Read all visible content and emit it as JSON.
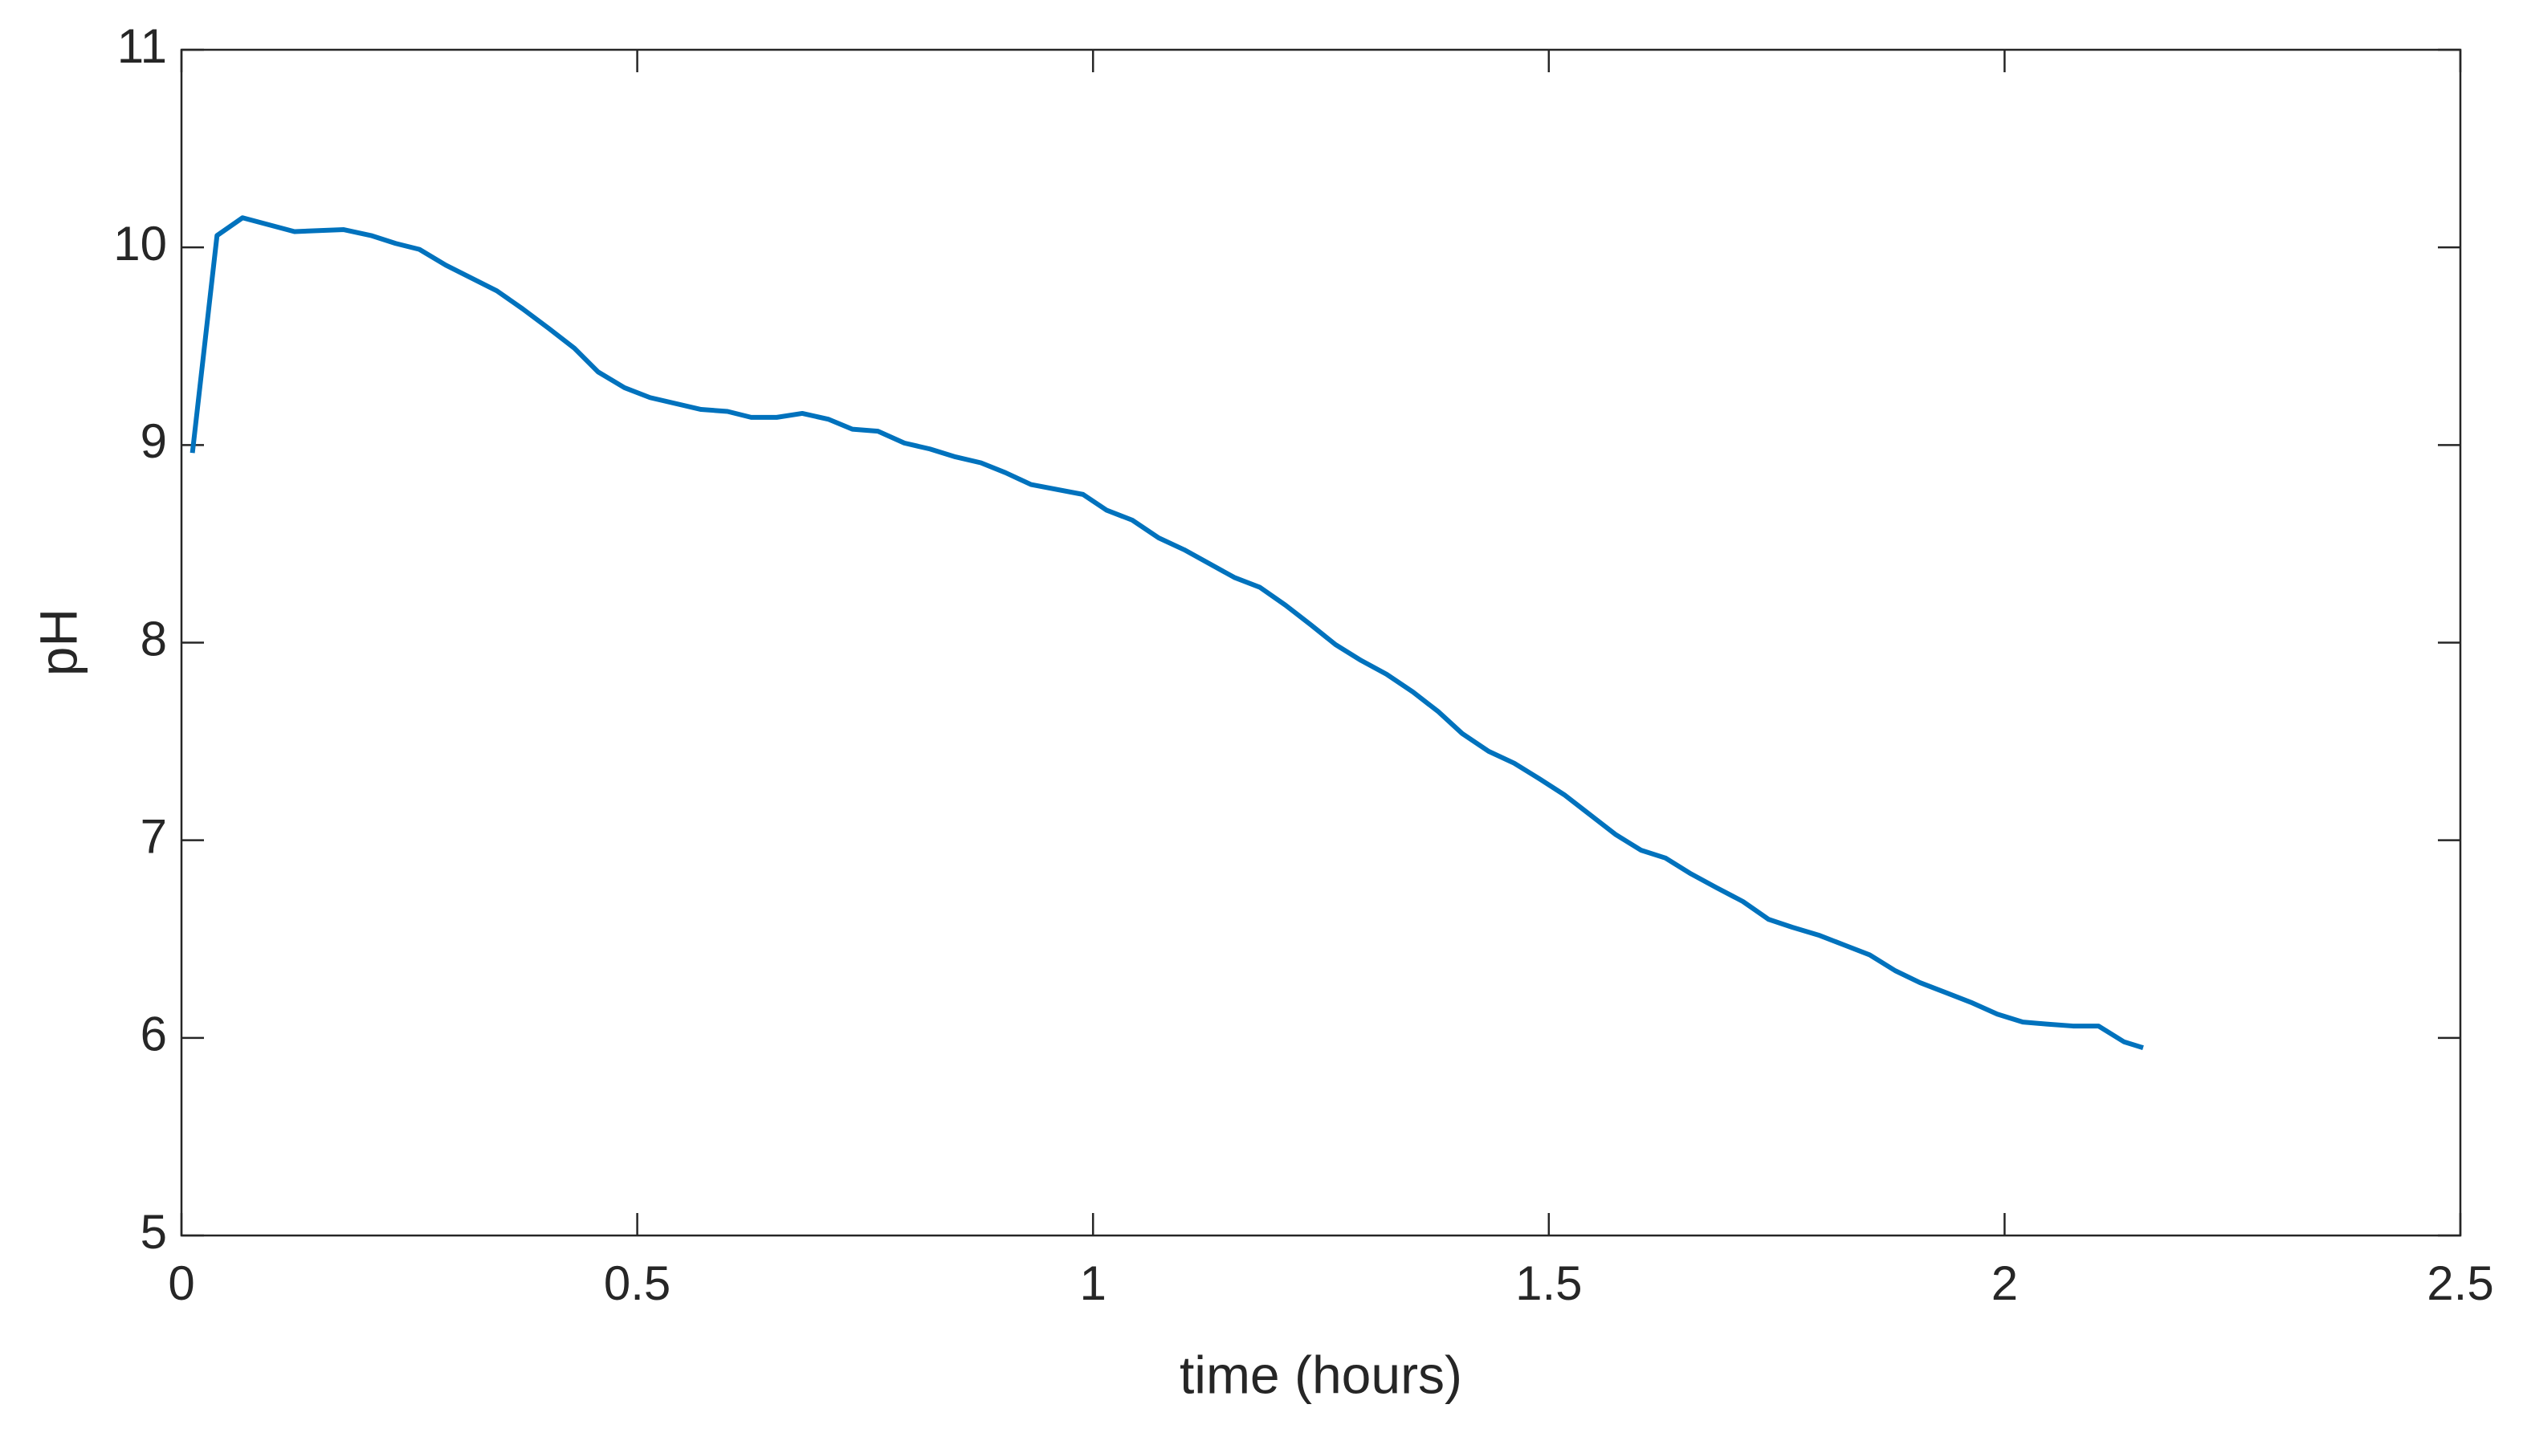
{
  "chart_data": {
    "type": "line",
    "xlabel": "time (hours)",
    "ylabel": "pH",
    "xlim": [
      0,
      2.5
    ],
    "xticks": [
      0,
      0.5,
      1,
      1.5,
      2,
      2.5
    ],
    "ylim": [
      5,
      11
    ],
    "yticks": [
      5,
      6,
      7,
      8,
      9,
      10,
      11
    ],
    "grid": false,
    "series": [
      {
        "color": "#0072BD",
        "x": [
          0.012,
          0.039,
          0.067,
          0.124,
          0.178,
          0.208,
          0.235,
          0.261,
          0.29,
          0.346,
          0.374,
          0.403,
          0.431,
          0.457,
          0.486,
          0.514,
          0.57,
          0.599,
          0.625,
          0.653,
          0.681,
          0.71,
          0.736,
          0.764,
          0.793,
          0.821,
          0.849,
          0.877,
          0.904,
          0.932,
          0.989,
          1.015,
          1.043,
          1.072,
          1.1,
          1.155,
          1.183,
          1.211,
          1.239,
          1.266,
          1.294,
          1.322,
          1.351,
          1.379,
          1.405,
          1.434,
          1.462,
          1.49,
          1.517,
          1.545,
          1.573,
          1.601,
          1.628,
          1.656,
          1.684,
          1.713,
          1.741,
          1.767,
          1.796,
          1.824,
          1.852,
          1.88,
          1.907,
          1.935,
          1.963,
          1.992,
          2.02,
          2.046,
          2.075,
          2.103,
          2.131,
          2.152
        ],
        "values": [
          8.96,
          10.06,
          10.15,
          10.08,
          10.09,
          10.06,
          10.02,
          9.99,
          9.91,
          9.78,
          9.69,
          9.59,
          9.49,
          9.37,
          9.29,
          9.24,
          9.18,
          9.17,
          9.14,
          9.14,
          9.16,
          9.13,
          9.08,
          9.07,
          9.01,
          8.98,
          8.94,
          8.91,
          8.86,
          8.8,
          8.75,
          8.67,
          8.62,
          8.53,
          8.47,
          8.33,
          8.28,
          8.19,
          8.09,
          7.99,
          7.91,
          7.84,
          7.75,
          7.65,
          7.54,
          7.45,
          7.39,
          7.31,
          7.23,
          7.13,
          7.03,
          6.95,
          6.91,
          6.83,
          6.76,
          6.69,
          6.6,
          6.56,
          6.52,
          6.47,
          6.42,
          6.34,
          6.28,
          6.23,
          6.18,
          6.12,
          6.08,
          6.07,
          6.06,
          6.06,
          5.98,
          5.95
        ]
      }
    ]
  }
}
